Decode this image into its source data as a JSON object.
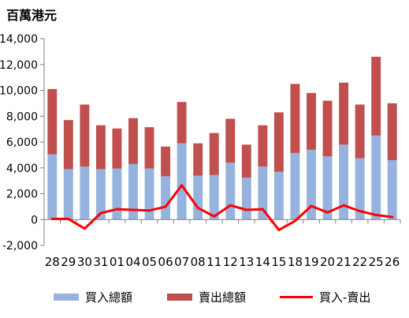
{
  "colors": {
    "buy": "#95B3DE",
    "sell": "#C0504D",
    "net": "#FF0000",
    "axis": "#808080",
    "grid": "#BFBFBF"
  },
  "chart_data": {
    "type": "bar",
    "title": "百萬港元",
    "stacked": true,
    "categories": [
      "28",
      "29",
      "30",
      "31",
      "01",
      "04",
      "05",
      "06",
      "07",
      "08",
      "11",
      "12",
      "13",
      "14",
      "15",
      "18",
      "19",
      "20",
      "21",
      "22",
      "25",
      "26"
    ],
    "ylim": [
      -2000,
      14000
    ],
    "ytick_labels": [
      "-2,000",
      "0",
      "2,000",
      "4,000",
      "6,000",
      "8,000",
      "10,000",
      "12,000",
      "14,000"
    ],
    "ytick_values": [
      -2000,
      0,
      2000,
      4000,
      6000,
      8000,
      10000,
      12000,
      14000
    ],
    "grid": false,
    "legend_position": "bottom",
    "series": [
      {
        "name": "買入總額",
        "type": "bar",
        "values": [
          5050,
          3900,
          4100,
          3900,
          3950,
          4300,
          3950,
          3350,
          5900,
          3400,
          3450,
          4400,
          3250,
          4100,
          3700,
          5150,
          5400,
          4900,
          5800,
          4750,
          6500,
          4600
        ]
      },
      {
        "name": "賣出總額",
        "type": "bar",
        "values": [
          5050,
          3800,
          4800,
          3400,
          3100,
          3550,
          3200,
          2300,
          3200,
          2500,
          3250,
          3400,
          2550,
          3200,
          4600,
          5350,
          4400,
          4300,
          4800,
          4150,
          6100,
          4400
        ]
      },
      {
        "name": "買入-賣出",
        "type": "line",
        "values": [
          50,
          50,
          -700,
          500,
          800,
          750,
          700,
          1000,
          2650,
          900,
          250,
          1100,
          750,
          800,
          -800,
          -100,
          1050,
          550,
          1100,
          650,
          350,
          200
        ]
      }
    ]
  }
}
